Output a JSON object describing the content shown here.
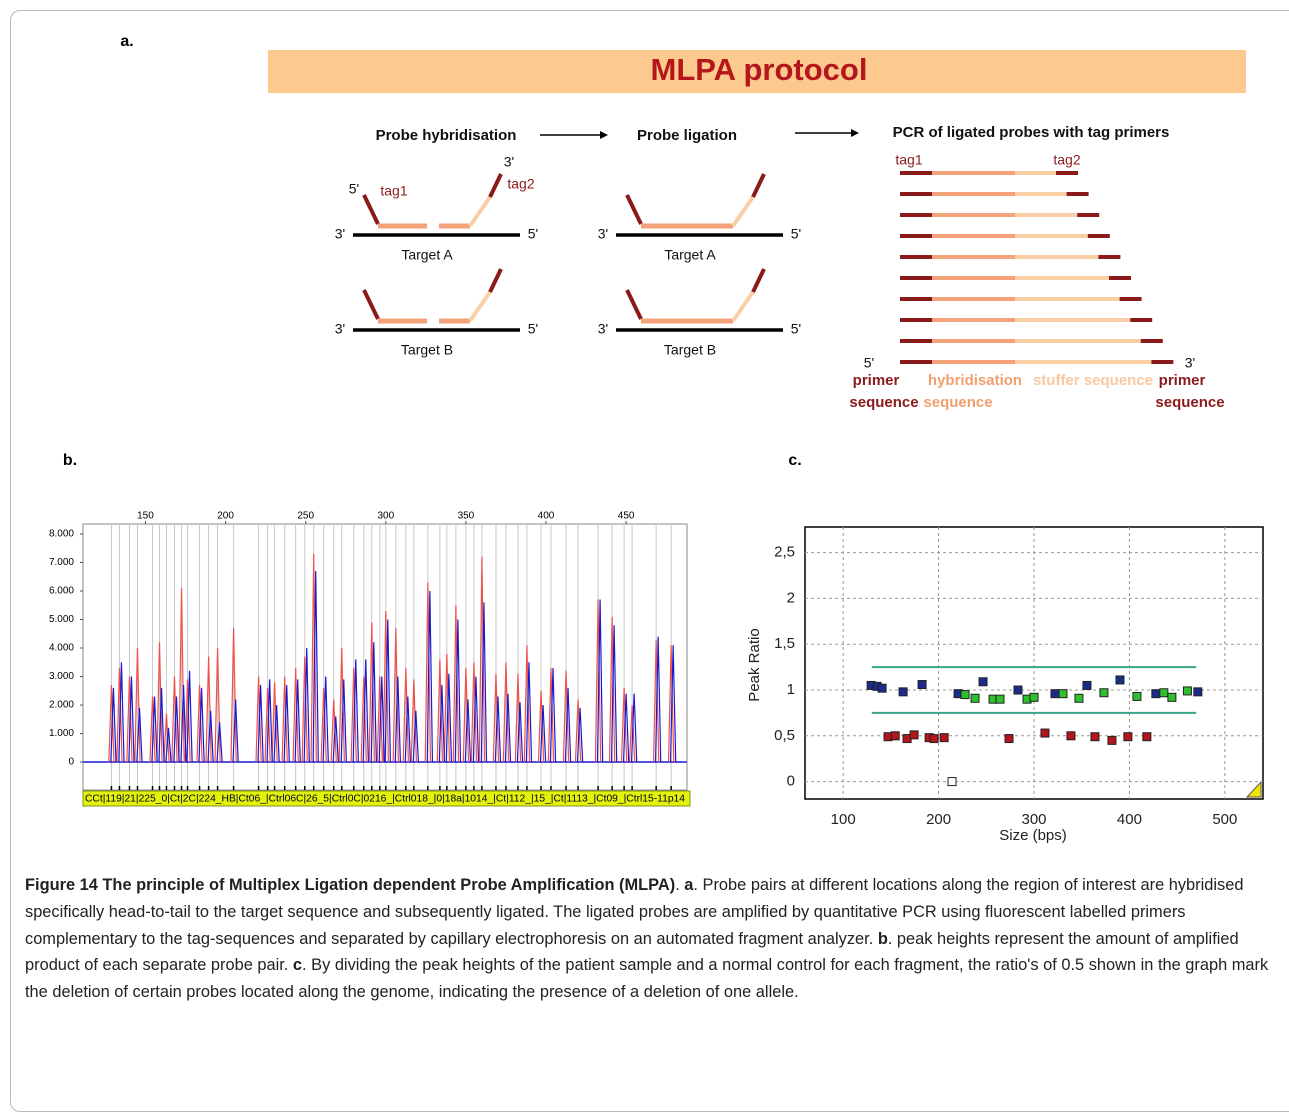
{
  "panel_a": {
    "label": "a.",
    "title": "MLPA protocol",
    "steps": [
      "Probe hybridisation",
      "Probe ligation",
      "PCR of ligated probes with tag primers"
    ],
    "end_5": "5'",
    "end_3": "3'",
    "tag1": "tag1",
    "tag2": "tag2",
    "targets": [
      "Target A",
      "Target B"
    ],
    "legend": {
      "primer": "primer",
      "sequence": "sequence",
      "hybridisation": "hybridisation",
      "stuffer": "stuffer sequence"
    }
  },
  "chart_data": [
    {
      "type": "electropherogram",
      "label": "b.",
      "x": [
        128.75,
        133.75,
        140,
        145,
        154.4,
        158.75,
        163.1,
        168.1,
        172.5,
        176.25,
        183.75,
        189.4,
        195,
        205,
        220.6,
        226.25,
        230.6,
        236.9,
        243.75,
        249.4,
        255,
        261.25,
        267.5,
        272.5,
        280,
        286.25,
        291.25,
        296.25,
        300,
        306.25,
        312.5,
        317.5,
        326.25,
        333.75,
        338.1,
        343.75,
        350,
        355,
        360,
        368.75,
        375,
        382.5,
        388.1,
        396.9,
        403.1,
        412.5,
        420,
        432.5,
        441.25,
        448.75,
        453.75,
        468.75,
        478.1
      ],
      "series": [
        {
          "color": "#f0504a",
          "values": [
            2700,
            3300,
            3000,
            4000,
            2300,
            4200,
            1700,
            3000,
            6100,
            2900,
            2700,
            3700,
            4000,
            4700,
            3000,
            2600,
            2800,
            3000,
            3300,
            3700,
            7300,
            2600,
            2200,
            4000,
            3300,
            3000,
            4900,
            3000,
            5300,
            4700,
            3300,
            2900,
            6300,
            3600,
            3800,
            5500,
            3300,
            3500,
            7200,
            3100,
            3500,
            3100,
            4100,
            2500,
            3300,
            3200,
            2200,
            5700,
            5100,
            2600,
            2000,
            4300,
            4100
          ]
        },
        {
          "color": "#1a1ad0",
          "values": [
            2600,
            3500,
            3000,
            1900,
            2300,
            2600,
            1200,
            2300,
            2700,
            3200,
            2600,
            1800,
            1400,
            2200,
            2700,
            2900,
            2000,
            2700,
            2900,
            4000,
            6700,
            3000,
            1600,
            2900,
            3600,
            3600,
            4200,
            3000,
            5000,
            3000,
            2300,
            1800,
            6000,
            2700,
            3100,
            5000,
            2200,
            3000,
            5600,
            2300,
            2400,
            2100,
            3500,
            2000,
            3300,
            2600,
            1900,
            5700,
            4800,
            2400,
            2400,
            4400,
            4100
          ]
        }
      ],
      "xlim": [
        111,
        488
      ],
      "xticks": [
        150,
        200,
        250,
        300,
        350,
        400,
        450
      ],
      "ylim": [
        -980,
        8350
      ],
      "yticks": [
        0,
        {
          "value": 1000,
          "label": "1.000"
        },
        {
          "value": 2000,
          "label": "2.000"
        },
        {
          "value": 3000,
          "label": "3.000"
        },
        {
          "value": 4000,
          "label": "4.000"
        },
        {
          "value": 5000,
          "label": "5.000"
        },
        {
          "value": 6000,
          "label": "6.000"
        },
        {
          "value": 7000,
          "label": "7.000"
        },
        {
          "value": 8000,
          "label": "8.000"
        }
      ],
      "strip_label": "CCt|119|21|225_0|Ct|2C|224_HB|Ct06_|Ctrl06C|26_5|Ctrl0C|0216_|Ctrl018_|0|18a|1014_|Ct|112_|15_|Ct|1113_|Ct09_|Ctrl15-11p14",
      "strip_color": "#e2f20a"
    },
    {
      "type": "scatter",
      "label": "c.",
      "x_label": "Size (bps)",
      "y_label": "Peak Ratio",
      "series": [
        {
          "color": "#1c2a8c",
          "x": [
            129.3,
            135.6,
            140.8,
            162.8,
            182.7,
            220.4,
            246.6,
            283.2,
            322.0,
            355.5,
            390.1,
            427.7,
            471.7
          ],
          "values": [
            1.05,
            1.04,
            1.02,
            0.98,
            1.06,
            0.96,
            1.09,
            1.0,
            0.96,
            1.05,
            1.11,
            0.96,
            0.98
          ]
        },
        {
          "color": "#2ec02e",
          "x": [
            227.7,
            238.2,
            257.1,
            264.4,
            292.7,
            300.0,
            330.4,
            347.1,
            373.3,
            407.9,
            436.1,
            444.5,
            460.8
          ],
          "values": [
            0.95,
            0.91,
            0.9,
            0.9,
            0.9,
            0.92,
            0.96,
            0.91,
            0.97,
            0.93,
            0.97,
            0.92,
            0.99
          ]
        },
        {
          "color": "#b3151d",
          "x": [
            147.1,
            154.5,
            167.0,
            174.3,
            190.1,
            195.3,
            205.8,
            273.8,
            311.5,
            338.7,
            363.9,
            381.7,
            398.4,
            418.3
          ],
          "values": [
            0.49,
            0.5,
            0.47,
            0.51,
            0.48,
            0.47,
            0.48,
            0.47,
            0.53,
            0.5,
            0.49,
            0.45,
            0.49,
            0.49
          ]
        },
        {
          "color": "#ffffff",
          "x": [
            214.1
          ],
          "values": [
            0.0
          ]
        }
      ],
      "xlim": [
        60,
        540
      ],
      "xticks": [
        100,
        200,
        300,
        400,
        500
      ],
      "ylim": [
        -0.19,
        2.78
      ],
      "yticks": [
        0,
        {
          "value": 0.5,
          "label": "0,5"
        },
        1,
        {
          "value": 1.5,
          "label": "1,5"
        },
        2,
        {
          "value": 2.5,
          "label": "2,5"
        }
      ],
      "grid": true,
      "hlines": [
        0.75,
        1.25
      ],
      "hline_xlim": [
        130,
        470
      ],
      "hline_color": "#3aa58a"
    }
  ],
  "caption": [
    {
      "text": "Figure 14 The principle of Multiplex Ligation dependent Probe Amplification (MLPA)",
      "bold": true
    },
    {
      "text": ". ",
      "bold": false
    },
    {
      "text": "a",
      "bold": true
    },
    {
      "text": ". Probe pairs at different locations along the region of interest are hybridised specifically head-to-tail to the target sequence and subsequently ligated. The ligated probes are amplified by quantitative PCR using fluorescent labelled primers complementary to the tag-sequences and separated by capillary electrophoresis on an automated fragment analyzer. ",
      "bold": false
    },
    {
      "text": "b",
      "bold": true
    },
    {
      "text": ". peak heights represent the amount of amplified product of each separate probe pair. ",
      "bold": false
    },
    {
      "text": "c",
      "bold": true
    },
    {
      "text": ". By dividing the peak heights of the patient sample and a normal control for each fragment, the ratio's of 0.5 shown in the graph mark the deletion of certain probes located along the genome, indicating the presence of a deletion of one allele.",
      "bold": false
    }
  ]
}
